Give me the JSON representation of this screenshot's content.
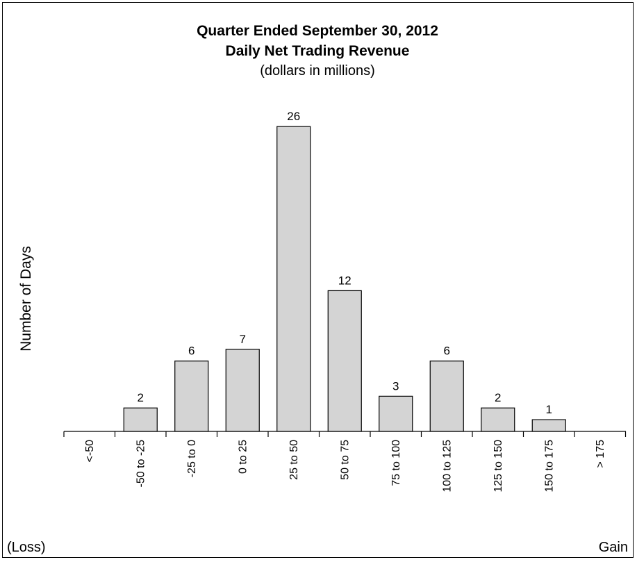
{
  "chart_data": {
    "type": "bar",
    "title": "Quarter Ended September 30, 2012",
    "subtitle_bold": "Daily Net Trading Revenue",
    "subtitle": "(dollars in millions)",
    "ylabel": "Number of Days",
    "xlabel_left": "(Loss)",
    "xlabel_right": "Gain",
    "categories": [
      "<-50",
      "-50 to -25",
      "-25 to 0",
      "0 to 25",
      "25 to 50",
      "50 to 75",
      "75 to 100",
      "100 to 125",
      "125 to 150",
      "150 to 175",
      "> 175"
    ],
    "values": [
      0,
      2,
      6,
      7,
      26,
      12,
      3,
      6,
      2,
      1,
      0
    ],
    "show_zero_labels": false,
    "bar_color": "#d4d4d4",
    "bar_edge_color": "#000000",
    "grid": false,
    "legend": "none"
  }
}
